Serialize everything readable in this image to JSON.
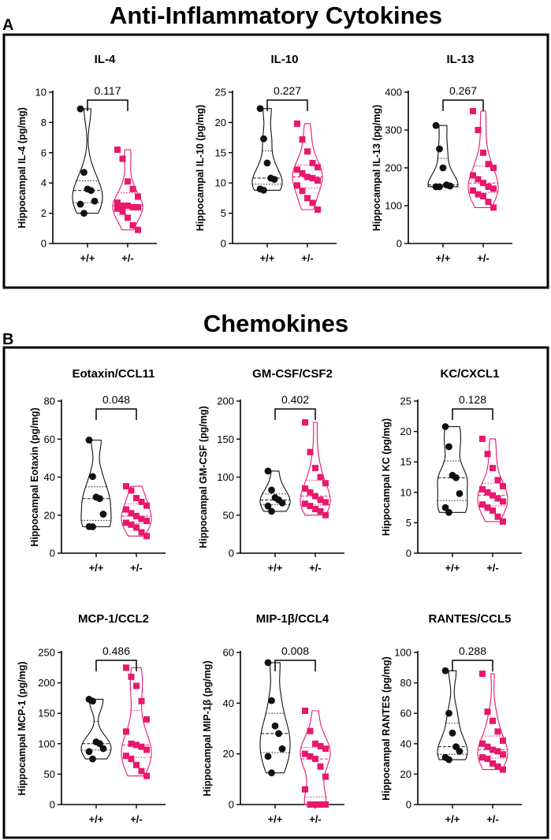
{
  "figure": {
    "sections": [
      {
        "letter": "A",
        "title": "Anti-Inflammatory Cytokines"
      },
      {
        "letter": "B",
        "title": "Chemokines"
      }
    ],
    "colors": {
      "wt": "#111111",
      "het": "#e8186e",
      "frame": "#000000"
    }
  },
  "chart_data": [
    {
      "type": "scatter",
      "panel_title": "IL-4",
      "ylabel": "Hippocampal IL-4 (pg/mg)",
      "categories": [
        "+/+",
        "+/-"
      ],
      "ylim": [
        0,
        10
      ],
      "yticks": [
        0,
        2,
        4,
        6,
        8,
        10
      ],
      "p_value": "0.117",
      "series": [
        {
          "name": "+/+",
          "marker": "circle",
          "values": [
            8.9,
            4.7,
            3.6,
            3.5,
            2.8,
            2.6,
            2.0
          ]
        },
        {
          "name": "+/-",
          "marker": "square",
          "values": [
            6.2,
            5.6,
            4.1,
            3.6,
            3.1,
            2.7,
            2.5,
            2.5,
            2.4,
            2.4,
            2.3,
            2.1,
            1.7,
            1.2,
            0.9
          ]
        }
      ]
    },
    {
      "type": "scatter",
      "panel_title": "IL-10",
      "ylabel": "Hippocampal IL-10 (pg/mg)",
      "categories": [
        "+/+",
        "+/-"
      ],
      "ylim": [
        0,
        25
      ],
      "yticks": [
        0,
        5,
        10,
        15,
        20,
        25
      ],
      "p_value": "0.227",
      "series": [
        {
          "name": "+/+",
          "marker": "circle",
          "values": [
            22.3,
            17.3,
            13.3,
            10.8,
            10.6,
            9.0,
            8.8
          ]
        },
        {
          "name": "+/-",
          "marker": "square",
          "values": [
            19.8,
            17.2,
            15.2,
            13.3,
            12.6,
            12.2,
            11.6,
            11.0,
            10.8,
            10.4,
            9.6,
            8.7,
            7.5,
            6.7,
            5.6
          ]
        }
      ]
    },
    {
      "type": "scatter",
      "panel_title": "IL-13",
      "ylabel": "Hippocampal IL-13 (pg/mg)",
      "categories": [
        "+/+",
        "+/-"
      ],
      "ylim": [
        0,
        400
      ],
      "yticks": [
        0,
        100,
        200,
        300,
        400
      ],
      "p_value": "0.267",
      "series": [
        {
          "name": "+/+",
          "marker": "circle",
          "values": [
            312,
            250,
            200,
            155,
            152,
            150,
            150
          ]
        },
        {
          "name": "+/-",
          "marker": "square",
          "values": [
            350,
            300,
            240,
            210,
            200,
            180,
            170,
            160,
            150,
            145,
            140,
            130,
            125,
            110,
            95
          ]
        }
      ]
    },
    {
      "type": "scatter",
      "panel_title": "Eotaxin/CCL11",
      "ylabel": "Hippocampal Eotaxin (pg/mg)",
      "categories": [
        "+/+",
        "+/-"
      ],
      "ylim": [
        0,
        80
      ],
      "yticks": [
        0,
        20,
        40,
        60,
        80
      ],
      "p_value": "0.048",
      "series": [
        {
          "name": "+/+",
          "marker": "circle",
          "values": [
            59.5,
            40.3,
            29.5,
            28.7,
            20.5,
            14.0,
            13.9
          ]
        },
        {
          "name": "+/-",
          "marker": "square",
          "values": [
            35.2,
            33.0,
            29.0,
            27.0,
            25.0,
            23.0,
            21.0,
            19.5,
            18.0,
            17.0,
            16.0,
            15.0,
            13.5,
            11.0,
            9.0
          ]
        }
      ]
    },
    {
      "type": "scatter",
      "panel_title": "GM-CSF/CSF2",
      "ylabel": "Hippocampal GM-CSF (pg/mg)",
      "categories": [
        "+/+",
        "+/-"
      ],
      "ylim": [
        0,
        200
      ],
      "yticks": [
        0,
        50,
        100,
        150,
        200
      ],
      "p_value": "0.402",
      "series": [
        {
          "name": "+/+",
          "marker": "circle",
          "values": [
            108,
            83,
            73,
            70,
            66,
            62,
            55
          ]
        },
        {
          "name": "+/-",
          "marker": "square",
          "values": [
            172,
            133,
            112,
            100,
            92,
            85,
            80,
            75,
            70,
            67,
            65,
            62,
            58,
            55,
            50
          ]
        }
      ]
    },
    {
      "type": "scatter",
      "panel_title": "KC/CXCL1",
      "ylabel": "Hippocampal KC (pg/mg)",
      "categories": [
        "+/+",
        "+/-"
      ],
      "ylim": [
        0,
        25
      ],
      "yticks": [
        0,
        5,
        10,
        15,
        20,
        25
      ],
      "p_value": "0.128",
      "series": [
        {
          "name": "+/+",
          "marker": "circle",
          "values": [
            20.8,
            17.5,
            12.8,
            12.4,
            9.8,
            7.5,
            6.7
          ]
        },
        {
          "name": "+/-",
          "marker": "square",
          "values": [
            18.8,
            16.3,
            14.0,
            12.0,
            11.0,
            10.5,
            10.0,
            9.5,
            9.0,
            8.5,
            8.0,
            7.5,
            7.0,
            6.0,
            5.2
          ]
        }
      ]
    },
    {
      "type": "scatter",
      "panel_title": "MCP-1/CCL2",
      "ylabel": "Hippocampal MCP-1 (pg/mg)",
      "categories": [
        "+/+",
        "+/-"
      ],
      "ylim": [
        0,
        250
      ],
      "yticks": [
        0,
        50,
        100,
        150,
        200,
        250
      ],
      "p_value": "0.486",
      "series": [
        {
          "name": "+/+",
          "marker": "circle",
          "values": [
            173,
            170,
            103,
            100,
            92,
            87,
            75
          ]
        },
        {
          "name": "+/-",
          "marker": "square",
          "values": [
            225,
            210,
            195,
            170,
            140,
            120,
            100,
            98,
            95,
            90,
            80,
            75,
            65,
            55,
            47
          ]
        }
      ]
    },
    {
      "type": "scatter",
      "panel_title": "MIP-1β/CCL4",
      "ylabel": "Hippocampal MIP-1β (pg/mg)",
      "categories": [
        "+/+",
        "+/-"
      ],
      "ylim": [
        0,
        60
      ],
      "yticks": [
        0,
        20,
        40,
        60
      ],
      "p_value": "0.008",
      "series": [
        {
          "name": "+/+",
          "marker": "circle",
          "values": [
            56,
            41,
            31,
            28,
            22,
            19,
            12.5
          ]
        },
        {
          "name": "+/-",
          "marker": "square",
          "values": [
            37,
            29,
            24,
            23,
            22,
            20,
            19,
            18,
            15,
            11,
            6,
            0,
            0,
            0,
            0
          ]
        }
      ]
    },
    {
      "type": "scatter",
      "panel_title": "RANTES/CCL5",
      "ylabel": "Hippocampal RANTES (pg/mg)",
      "categories": [
        "+/+",
        "+/-"
      ],
      "ylim": [
        0,
        100
      ],
      "yticks": [
        0,
        20,
        40,
        60,
        80,
        100
      ],
      "p_value": "0.288",
      "series": [
        {
          "name": "+/+",
          "marker": "circle",
          "values": [
            88,
            60,
            47,
            38,
            35,
            31,
            29.5
          ]
        },
        {
          "name": "+/-",
          "marker": "square",
          "values": [
            86,
            61,
            55,
            48,
            42,
            40,
            38,
            36,
            35,
            33,
            31,
            30,
            27,
            25,
            23
          ]
        }
      ]
    }
  ]
}
